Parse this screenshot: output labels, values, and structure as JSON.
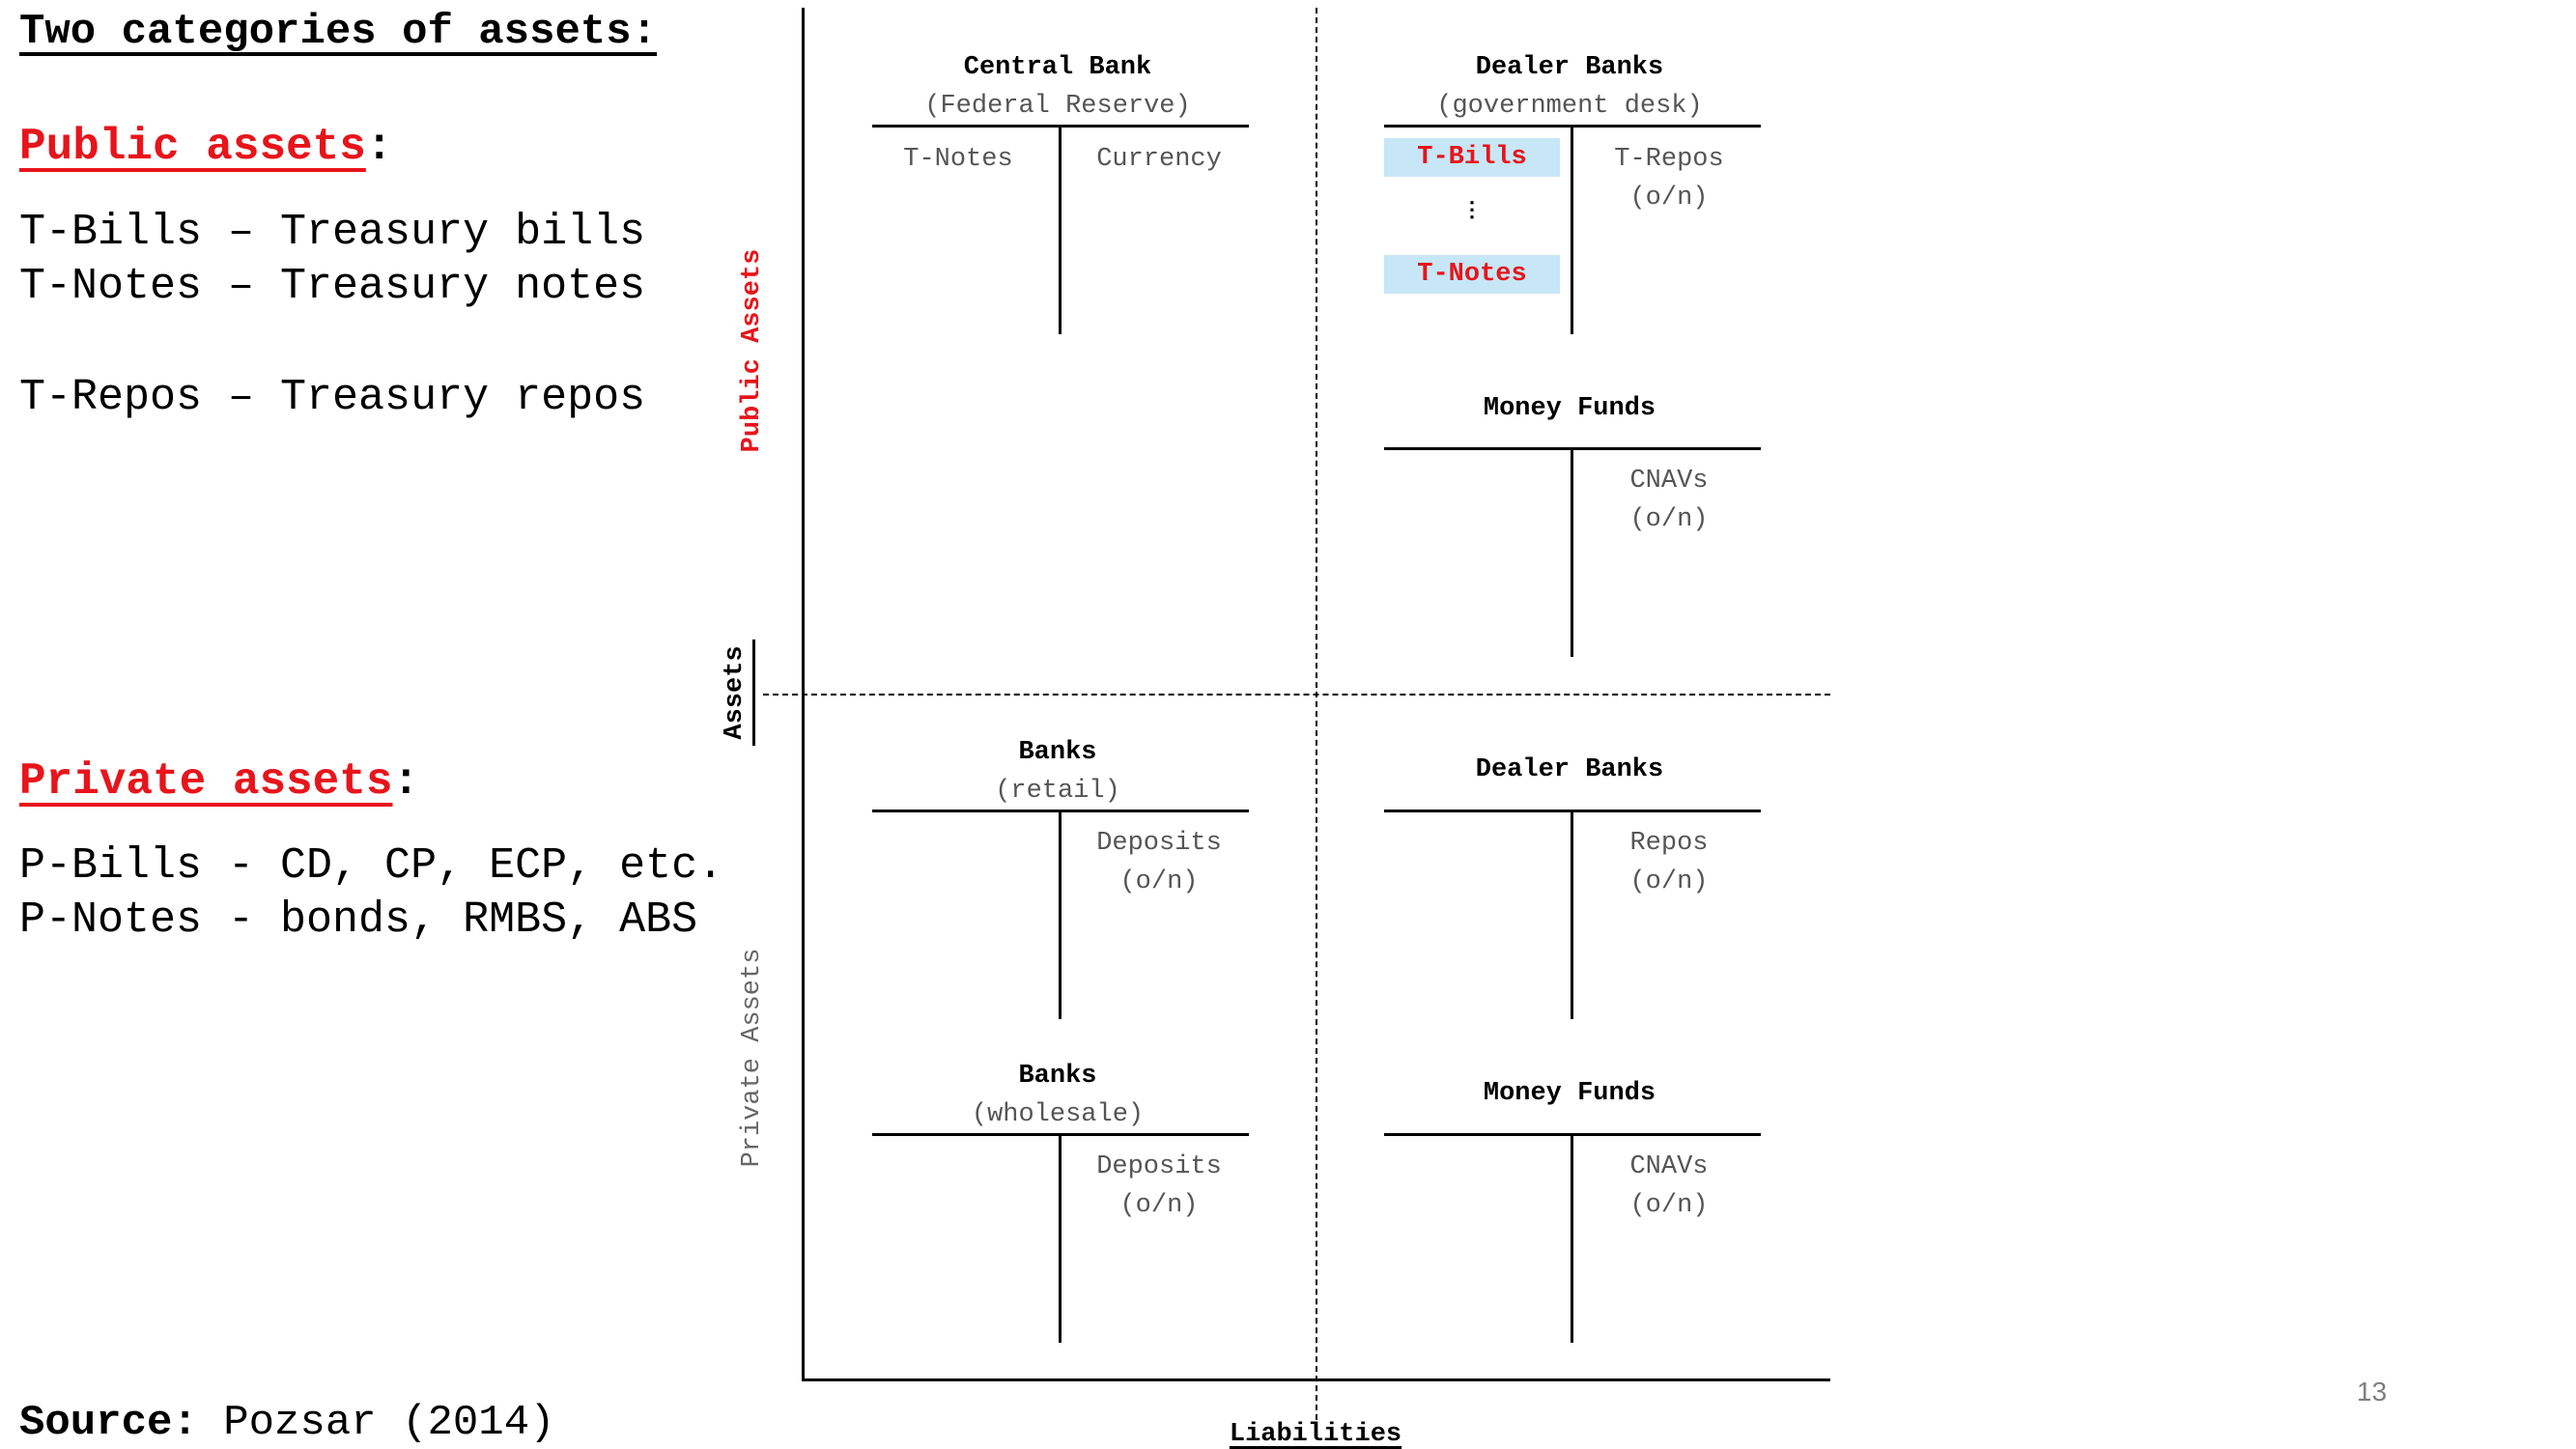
{
  "heading": "Two categories of assets:",
  "public_section": {
    "title": "Public assets",
    "colon": ":",
    "lines": [
      "T-Bills – Treasury bills",
      "T-Notes – Treasury notes",
      "T-Repos – Treasury repos"
    ]
  },
  "private_section": {
    "title": "Private assets",
    "colon": ":",
    "lines": [
      "P-Bills - CD, CP, ECP, etc.",
      "P-Notes - bonds, RMBS, ABS"
    ]
  },
  "source": {
    "label": "Source:",
    "text": "Pozsar (2014)"
  },
  "page_number": "13",
  "axes": {
    "public_assets": "Public Assets",
    "private_assets": "Private Assets",
    "assets": "Assets",
    "liabilities": "Liabilities"
  },
  "taccounts": {
    "central_bank": {
      "name": "Central Bank",
      "sub": "(Federal Reserve)",
      "assets": "T-Notes",
      "liabilities": "Currency"
    },
    "dealer_gov": {
      "name": "Dealer Banks",
      "sub": "(government desk)",
      "assets_top": "T-Bills",
      "ellipsis": "⋮",
      "assets_bottom": "T-Notes",
      "liabilities_1": "T-Repos",
      "liabilities_2": "(o/n)"
    },
    "money_funds_top": {
      "name": "Money Funds",
      "liabilities_1": "CNAVs",
      "liabilities_2": "(o/n)"
    },
    "banks_retail": {
      "name": "Banks",
      "sub": "(retail)",
      "liabilities_1": "Deposits",
      "liabilities_2": "(o/n)"
    },
    "dealer_banks": {
      "name": "Dealer Banks",
      "liabilities_1": "Repos",
      "liabilities_2": "(o/n)"
    },
    "banks_wholesale": {
      "name": "Banks",
      "sub": "(wholesale)",
      "liabilities_1": "Deposits",
      "liabilities_2": "(o/n)"
    },
    "money_funds_bottom": {
      "name": "Money Funds",
      "liabilities_1": "CNAVs",
      "liabilities_2": "(o/n)"
    }
  },
  "colors": {
    "accent_red": "#e8141b",
    "highlight_blue": "#c7e7f7",
    "muted_text": "#555555"
  }
}
